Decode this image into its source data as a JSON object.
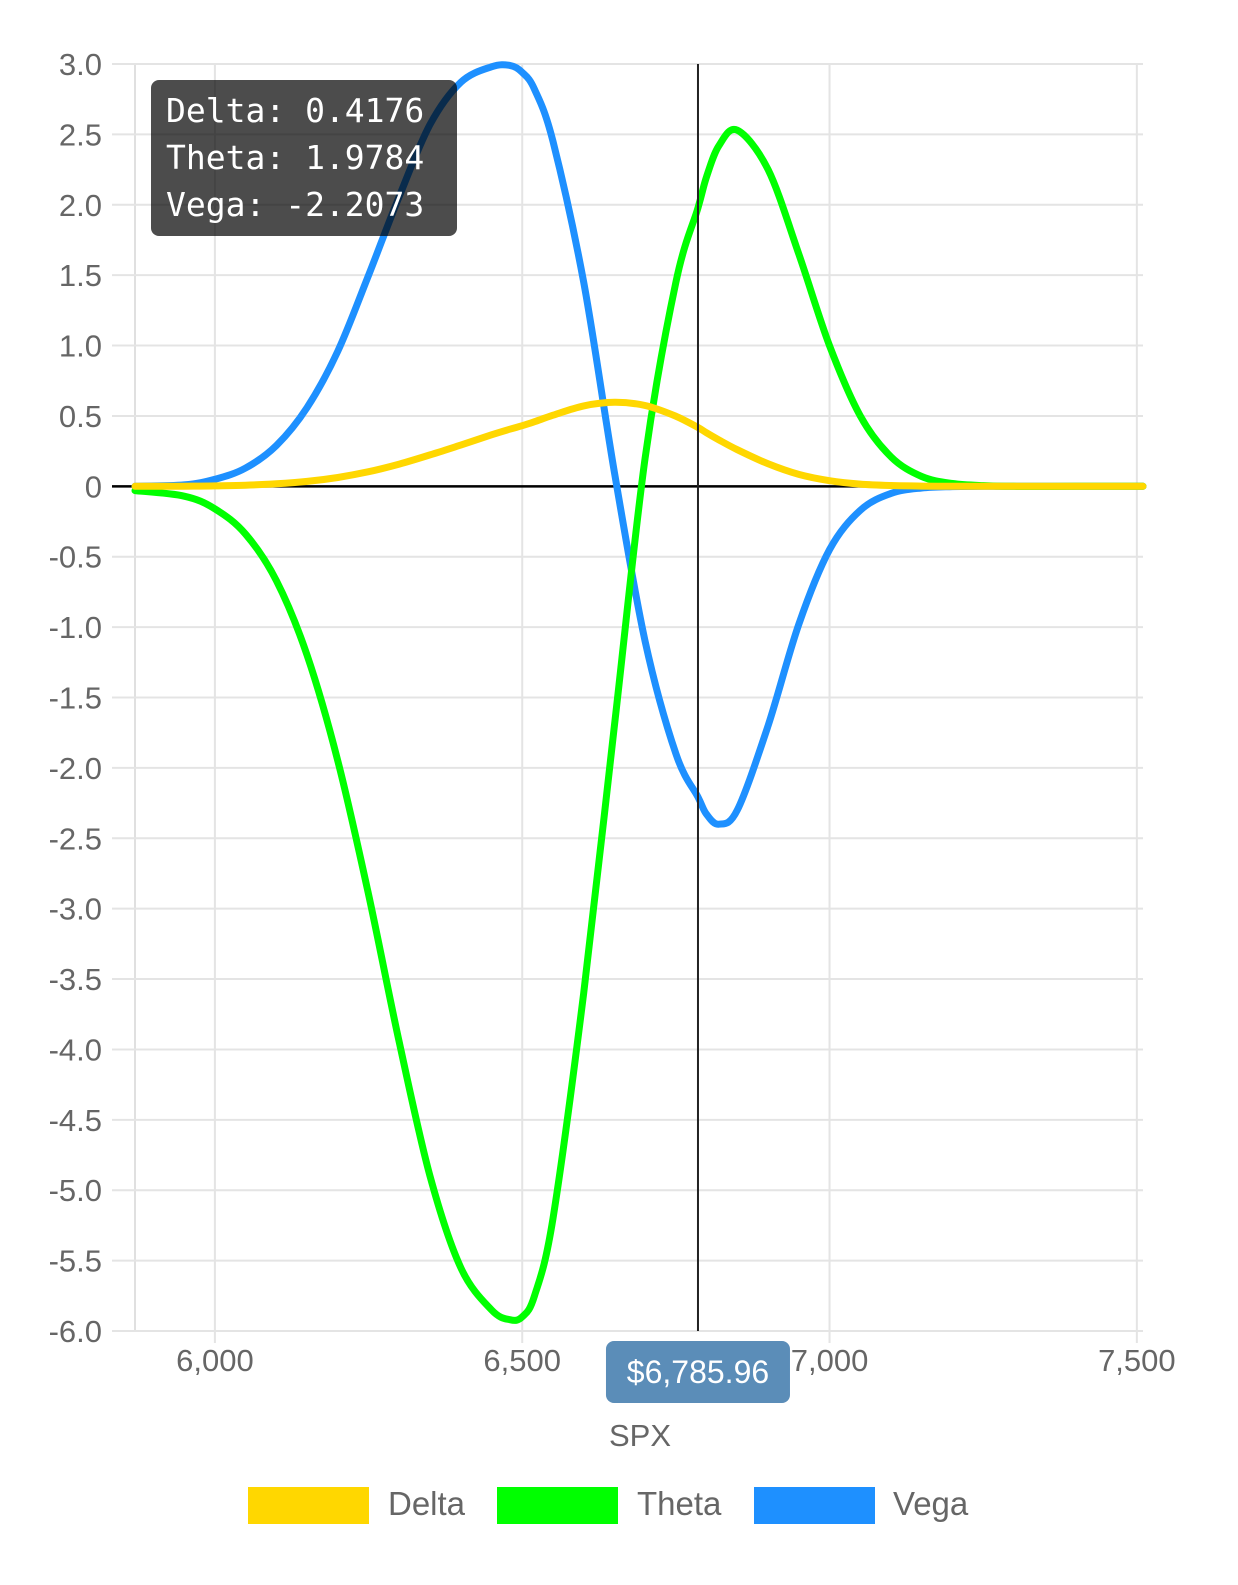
{
  "chart_data": {
    "type": "line",
    "xlabel": "SPX",
    "xlim": [
      5870,
      7510
    ],
    "ylim": [
      -6.0,
      3.0
    ],
    "x_ticks": [
      6000,
      6500,
      7000,
      7500
    ],
    "x_tick_labels": [
      "6,000",
      "6,500",
      "7,000",
      "7,500"
    ],
    "y_ticks": [
      3.0,
      2.5,
      2.0,
      1.5,
      1.0,
      0.5,
      0,
      -0.5,
      -1.0,
      -1.5,
      -2.0,
      -2.5,
      -3.0,
      -3.5,
      -4.0,
      -4.5,
      -5.0,
      -5.5,
      -6.0
    ],
    "y_tick_labels": [
      "3.0",
      "2.5",
      "2.0",
      "1.5",
      "1.0",
      "0.5",
      "0",
      "-0.5",
      "-1.0",
      "-1.5",
      "-2.0",
      "-2.5",
      "-3.0",
      "-3.5",
      "-4.0",
      "-4.5",
      "-5.0",
      "-5.5",
      "-6.0"
    ],
    "grid": true,
    "legend_position": "bottom",
    "x": [
      5870,
      5950,
      6000,
      6050,
      6100,
      6150,
      6200,
      6250,
      6300,
      6350,
      6400,
      6450,
      6480,
      6500,
      6520,
      6550,
      6600,
      6650,
      6700,
      6750,
      6785.96,
      6800,
      6820,
      6850,
      6900,
      6950,
      7000,
      7050,
      7100,
      7150,
      7200,
      7250,
      7300,
      7400,
      7510
    ],
    "series": [
      {
        "name": "Delta",
        "color": "#FFD700",
        "values": [
          0.0,
          0.001,
          0.003,
          0.008,
          0.018,
          0.035,
          0.063,
          0.104,
          0.158,
          0.223,
          0.293,
          0.366,
          0.406,
          0.431,
          0.459,
          0.505,
          0.571,
          0.597,
          0.574,
          0.498,
          0.4176,
          0.38,
          0.33,
          0.26,
          0.16,
          0.085,
          0.04,
          0.016,
          0.006,
          0.002,
          0.0006,
          0.0001,
          0.0,
          0.0,
          0.0
        ]
      },
      {
        "name": "Theta",
        "color": "#00FF00",
        "values": [
          -0.03,
          -0.07,
          -0.16,
          -0.34,
          -0.67,
          -1.2,
          -1.95,
          -2.9,
          -3.95,
          -4.9,
          -5.55,
          -5.85,
          -5.92,
          -5.9,
          -5.75,
          -5.2,
          -3.6,
          -1.7,
          0.2,
          1.45,
          1.9784,
          2.2,
          2.42,
          2.53,
          2.25,
          1.65,
          1.0,
          0.5,
          0.21,
          0.07,
          0.02,
          0.005,
          0.0,
          0.0,
          0.0
        ]
      },
      {
        "name": "Vega",
        "color": "#1E90FF",
        "values": [
          0.0,
          0.01,
          0.05,
          0.13,
          0.29,
          0.56,
          0.96,
          1.5,
          2.06,
          2.57,
          2.87,
          2.98,
          2.99,
          2.94,
          2.82,
          2.45,
          1.45,
          0.1,
          -1.1,
          -1.9,
          -2.2073,
          -2.33,
          -2.4,
          -2.3,
          -1.7,
          -0.98,
          -0.45,
          -0.17,
          -0.05,
          -0.012,
          -0.002,
          0.0,
          0.0,
          0.0,
          0.0
        ]
      }
    ],
    "crosshair_x": 6785.96,
    "crosshair_label": "$6,785.96",
    "tooltip": {
      "lines": [
        "Delta: 0.4176",
        "Theta: 1.9784",
        "Vega: -2.2073"
      ]
    }
  }
}
